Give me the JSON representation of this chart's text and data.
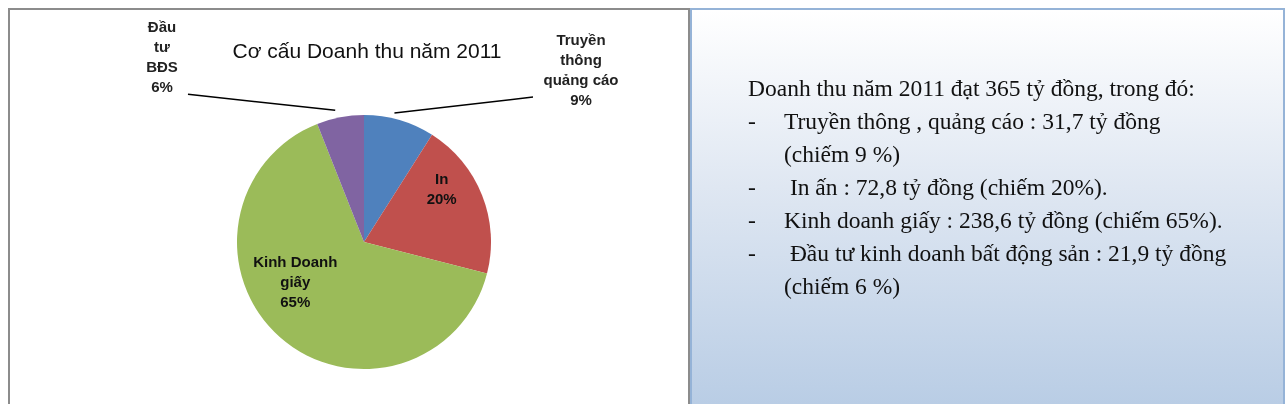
{
  "chart_data": [
    {
      "type": "pie",
      "title": "Cơ cấu Doanh thu năm 2011",
      "categories": [
        "Truyền thông quảng cáo",
        "In",
        "Kinh Doanh giấy",
        "Đầu tư BĐS"
      ],
      "values": [
        9,
        20,
        65,
        6
      ],
      "colors": [
        "#4f81bd",
        "#c0504d",
        "#9bbb59",
        "#8064a2"
      ],
      "value_labels": [
        "9%",
        "20%",
        "65%",
        "6%"
      ]
    },
    {
      "type": "other",
      "annotations": [
        "Doanh thu năm 2011 đạt 365 tỷ đồng, trong đó:",
        "-\tTruyền thông , quảng cáo : 31,7 tỷ đồng (chiếm 9 %)",
        "-\t In ấn : 72,8 tỷ đồng (chiếm 20%).",
        "-\tKinh doanh giấy : 238,6 tỷ đồng (chiếm 65%).",
        "-\t Đầu tư kinh doanh bất động sản : 21,9 tỷ đồng (chiếm 6 %)"
      ]
    }
  ]
}
